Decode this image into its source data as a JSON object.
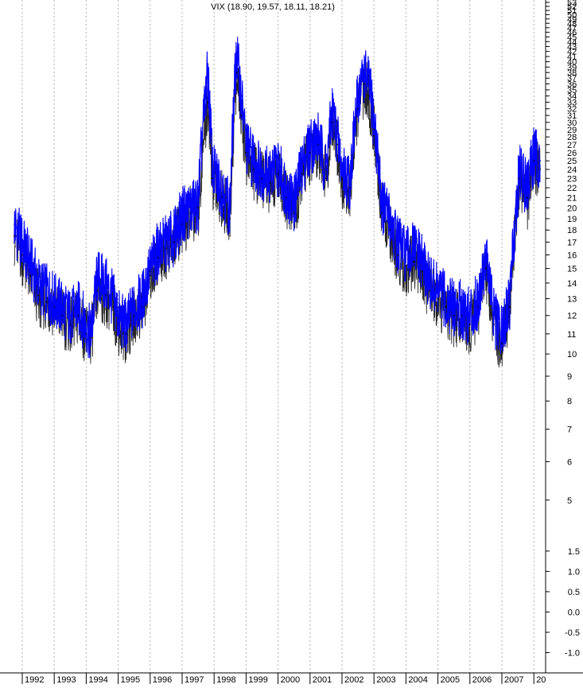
{
  "chart_data": {
    "type": "line",
    "title": "VIX (18.90, 19.57, 18.11, 18.21)",
    "xlabel": "",
    "ylabel": "",
    "grid": true,
    "x_ticks": [
      "1992",
      "1993",
      "1994",
      "1995",
      "1996",
      "1997",
      "1998",
      "1999",
      "2000",
      "2001",
      "2002",
      "2003",
      "2004",
      "2005",
      "2006",
      "2007",
      "20"
    ],
    "upper_axis": {
      "ticks": [
        5,
        6,
        7,
        8,
        9,
        10,
        11,
        12,
        13,
        14,
        15,
        16,
        17,
        18,
        19,
        20,
        21,
        22,
        23,
        24,
        25,
        26,
        27,
        28,
        29,
        30,
        31,
        32,
        33,
        34,
        35,
        36,
        37,
        38,
        39,
        40,
        41,
        42,
        43,
        44,
        45,
        46,
        47,
        48,
        49,
        50,
        51,
        52,
        53
      ],
      "range": [
        4.2,
        53.6
      ]
    },
    "lower_axis": {
      "ticks": [
        "1.5",
        "1.0",
        "0.5",
        "0.0",
        "-0.5",
        "-1.0"
      ],
      "range": [
        -1.5,
        1.85
      ]
    },
    "series": [
      {
        "color": "#0000ff",
        "x": [
          1991.75,
          1992.0,
          1992.25,
          1992.5,
          1992.75,
          1993.0,
          1993.25,
          1993.5,
          1993.75,
          1994.0,
          1994.15,
          1994.35,
          1994.6,
          1994.85,
          1995.0,
          1995.25,
          1995.5,
          1995.75,
          1996.0,
          1996.25,
          1996.5,
          1996.75,
          1997.0,
          1997.25,
          1997.5,
          1997.8,
          1997.95,
          1998.25,
          1998.5,
          1998.7,
          1998.85,
          1999.0,
          1999.25,
          1999.5,
          1999.75,
          2000.0,
          2000.25,
          2000.5,
          2000.75,
          2001.0,
          2001.25,
          2001.5,
          2001.7,
          2001.85,
          2002.0,
          2002.25,
          2002.5,
          2002.7,
          2002.85,
          2003.0,
          2003.25,
          2003.5,
          2003.75,
          2004.0,
          2004.25,
          2004.5,
          2004.75,
          2005.0,
          2005.25,
          2005.5,
          2005.75,
          2006.0,
          2006.25,
          2006.5,
          2006.75,
          2007.0,
          2007.25,
          2007.55,
          2007.8,
          2008.0,
          2008.2
        ],
        "y": [
          18.5,
          17.0,
          15.5,
          14.0,
          13.5,
          13.0,
          12.5,
          12.0,
          12.5,
          11.5,
          11.0,
          14.5,
          14.0,
          13.0,
          12.0,
          11.5,
          12.5,
          13.0,
          15.0,
          16.5,
          17.0,
          17.5,
          19.5,
          20.0,
          20.5,
          38.0,
          24.0,
          22.0,
          20.0,
          42.0,
          34.0,
          27.0,
          25.0,
          24.0,
          23.5,
          24.5,
          22.0,
          20.5,
          24.5,
          27.0,
          28.0,
          24.0,
          32.0,
          28.0,
          24.0,
          23.0,
          34.0,
          38.0,
          36.0,
          30.0,
          20.5,
          19.0,
          17.0,
          16.0,
          16.5,
          15.5,
          14.0,
          13.5,
          13.0,
          12.5,
          12.5,
          12.0,
          13.0,
          16.0,
          12.0,
          11.0,
          13.0,
          24.0,
          22.0,
          26.0,
          25.0
        ]
      },
      {
        "color": "#000000",
        "x": [
          1991.75,
          1992.0,
          1992.25,
          1992.5,
          1992.75,
          1993.0,
          1993.25,
          1993.5,
          1993.75,
          1994.0,
          1994.15,
          1994.35,
          1994.6,
          1994.85,
          1995.0,
          1995.25,
          1995.5,
          1995.75,
          1996.0,
          1996.25,
          1996.5,
          1996.75,
          1997.0,
          1997.25,
          1997.5,
          1997.8,
          1997.95,
          1998.25,
          1998.5,
          1998.7,
          1998.85,
          1999.0,
          1999.25,
          1999.5,
          1999.75,
          2000.0,
          2000.25,
          2000.5,
          2000.75,
          2001.0,
          2001.25,
          2001.5,
          2001.7,
          2001.85,
          2002.0,
          2002.25,
          2002.5,
          2002.7,
          2002.85,
          2003.0,
          2003.25,
          2003.5,
          2003.75,
          2004.0,
          2004.25,
          2004.5,
          2004.75,
          2005.0,
          2005.25,
          2005.5,
          2005.75,
          2006.0,
          2006.25,
          2006.5,
          2006.75,
          2007.0,
          2007.25,
          2007.55,
          2007.8,
          2008.0,
          2008.2
        ],
        "y": [
          17.5,
          16.0,
          14.5,
          13.2,
          12.8,
          12.5,
          12.0,
          11.5,
          12.0,
          11.0,
          10.8,
          13.5,
          13.2,
          12.5,
          11.5,
          11.0,
          12.0,
          12.5,
          14.5,
          15.8,
          16.5,
          17.0,
          18.5,
          19.5,
          20.0,
          33.0,
          23.0,
          21.0,
          19.0,
          38.0,
          31.0,
          26.0,
          24.0,
          23.0,
          22.5,
          23.5,
          21.0,
          19.5,
          23.5,
          26.0,
          27.0,
          23.0,
          30.0,
          27.0,
          23.0,
          22.0,
          32.0,
          36.0,
          34.0,
          29.0,
          19.5,
          18.0,
          16.0,
          15.2,
          15.5,
          14.8,
          13.5,
          13.0,
          12.5,
          12.0,
          12.0,
          11.5,
          12.5,
          15.0,
          11.5,
          10.5,
          12.5,
          23.0,
          21.0,
          25.0,
          24.0
        ]
      }
    ]
  }
}
